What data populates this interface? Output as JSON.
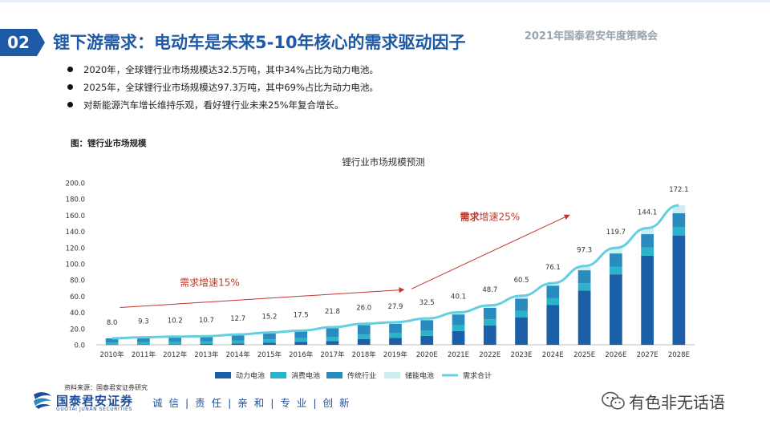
{
  "header": {
    "section_number": "02",
    "title": "锂下游需求：电动车是未来5-10年核心的需求驱动因子",
    "event": "2021年国泰君安年度策略会"
  },
  "bullets": [
    "2020年，全球锂行业市场规模达32.5万吨，其中34%占比为动力电池。",
    "2025年，全球锂行业市场规模达97.3万吨，其中69%占比为动力电池。",
    "对新能源汽车增长维持乐观，看好锂行业未来25%年复合增长。"
  ],
  "figure_label": "图：锂行业市场规模",
  "source": "资料来源：国泰君安证券研究",
  "footer": {
    "brand_cn": "国泰君安证券",
    "brand_en": "GUOTAI JUNAN SECURITIES",
    "slogan": "诚 信 | 责 任 | 亲 和 | 专 业 | 创 新",
    "watermark": "有色非无话语"
  },
  "colors": {
    "brand": "#1f5aa6",
    "power": "#1a5fa8",
    "consumer": "#2ab3c9",
    "traditional": "#2a8bbf",
    "storage": "#cdeef0",
    "total_line": "#63cfe0",
    "arrow": "#c0392b"
  },
  "chart_data": {
    "type": "bar",
    "stacked": true,
    "title": "锂行业市场规模预测",
    "categories": [
      "2010年",
      "2011年",
      "2012年",
      "2013年",
      "2014年",
      "2015年",
      "2016年",
      "2017年",
      "2018年",
      "2019年",
      "2020E",
      "2021E",
      "2022E",
      "2023E",
      "2024E",
      "2025E",
      "2026E",
      "2027E",
      "2028E"
    ],
    "ylim": [
      0,
      200
    ],
    "yticks": [
      "0.0",
      "20.0",
      "40.0",
      "60.0",
      "80.0",
      "100.0",
      "120.0",
      "140.0",
      "160.0",
      "180.0",
      "200.0"
    ],
    "series": [
      {
        "name": "动力电池",
        "type": "bar",
        "values": [
          0.3,
          0.4,
          0.7,
          1.0,
          1.6,
          2.6,
          3.6,
          4.6,
          7.0,
          8.5,
          11.0,
          17.0,
          24.0,
          34.0,
          49.0,
          67.0,
          87.0,
          110.0,
          135.0
        ]
      },
      {
        "name": "消费电池",
        "type": "bar",
        "values": [
          2.5,
          3.0,
          3.3,
          3.4,
          3.8,
          4.2,
          4.5,
          5.0,
          5.6,
          6.0,
          6.5,
          7.0,
          7.5,
          8.0,
          8.5,
          9.0,
          9.5,
          10.0,
          10.5
        ]
      },
      {
        "name": "传统行业",
        "type": "bar",
        "values": [
          5.2,
          5.9,
          6.2,
          6.3,
          7.3,
          8.4,
          9.3,
          11.0,
          11.8,
          11.5,
          13.0,
          13.5,
          14.2,
          15.0,
          15.6,
          16.0,
          16.3,
          16.6,
          17.0
        ]
      },
      {
        "name": "储能电池",
        "type": "bar",
        "values": [
          0.0,
          0.0,
          0.0,
          0.0,
          0.0,
          0.0,
          0.1,
          1.2,
          1.6,
          1.9,
          2.0,
          2.6,
          3.0,
          3.5,
          3.0,
          5.3,
          6.9,
          7.5,
          9.6
        ]
      },
      {
        "name": "需求合计",
        "type": "line",
        "values": [
          8.0,
          9.3,
          10.2,
          10.7,
          12.7,
          15.2,
          17.5,
          21.8,
          26.0,
          27.9,
          32.5,
          40.1,
          48.7,
          60.5,
          76.1,
          97.3,
          119.7,
          144.1,
          172.1
        ]
      }
    ],
    "data_labels": [
      "8.0",
      "9.3",
      "10.2",
      "10.7",
      "12.7",
      "15.2",
      "17.5",
      "21.8",
      "26.0",
      "27.9",
      "32.5",
      "40.1",
      "48.7",
      "60.5",
      "76.1",
      "97.3",
      "119.7",
      "144.1",
      "172.1"
    ],
    "annotations": [
      {
        "text_bold": "",
        "text": "需求增速15%"
      },
      {
        "text_bold": "需求",
        "text": "增速25%"
      }
    ],
    "legend_position": "bottom"
  }
}
